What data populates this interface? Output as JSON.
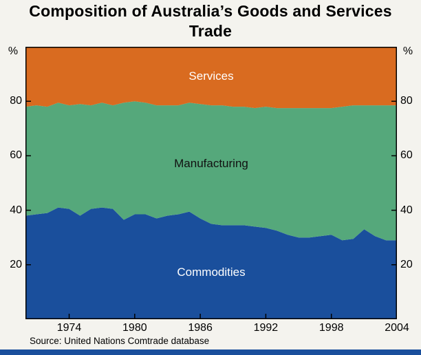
{
  "title": "Composition of Australia’s Goods and Services Trade",
  "source": "Source: United Nations Comtrade database",
  "labels": {
    "services": "Services",
    "manufacturing": "Manufacturing",
    "commodities": "Commodities"
  },
  "axes": {
    "y_unit_left": "%",
    "y_unit_right": "%",
    "y_ticks": [
      20,
      40,
      60,
      80
    ],
    "x_ticks": [
      1974,
      1980,
      1986,
      1992,
      1998,
      2004
    ]
  },
  "colors": {
    "commodities": "#1a4f9c",
    "manufacturing": "#55a87b",
    "services": "#d96b20",
    "background": "#f4f3ee",
    "frame": "#000000",
    "tick": "#000000",
    "bottom_bar": "#1a4f9c"
  },
  "chart_data": {
    "type": "area",
    "stacked": true,
    "title": "Composition of Australia’s Goods and Services Trade",
    "ylabel": "%",
    "ylim": [
      0,
      100
    ],
    "x_range": [
      1970,
      2004
    ],
    "grid": false,
    "legend_position": "labels-inside-areas",
    "years": [
      1970,
      1971,
      1972,
      1973,
      1974,
      1975,
      1976,
      1977,
      1978,
      1979,
      1980,
      1981,
      1982,
      1983,
      1984,
      1985,
      1986,
      1987,
      1988,
      1989,
      1990,
      1991,
      1992,
      1993,
      1994,
      1995,
      1996,
      1997,
      1998,
      1999,
      2000,
      2001,
      2002,
      2003,
      2004
    ],
    "series": [
      {
        "name": "Commodities",
        "values": [
          38,
          38.5,
          39,
          41,
          40.5,
          38,
          40.5,
          41,
          40.5,
          36.5,
          38.5,
          38.5,
          37,
          38,
          38.5,
          39.5,
          37,
          35,
          34.5,
          34.5,
          34.5,
          34,
          33.5,
          32.5,
          31,
          30,
          30,
          30.5,
          31,
          29,
          29.5,
          33,
          30.5,
          29,
          29
        ]
      },
      {
        "name": "Manufacturing",
        "values": [
          40,
          40,
          39,
          38.5,
          38,
          41,
          38,
          38.5,
          38,
          43,
          41.5,
          41,
          41.5,
          40.5,
          40,
          40,
          42,
          43.5,
          44,
          43.5,
          43.5,
          43.5,
          44.5,
          45,
          46.5,
          47.5,
          47.5,
          47,
          46.5,
          49,
          49,
          45.5,
          48,
          49.5,
          49.5
        ]
      },
      {
        "name": "Services",
        "values": [
          22,
          21.5,
          22,
          20.5,
          21.5,
          21,
          21.5,
          20.5,
          21.5,
          20.5,
          20,
          20.5,
          21.5,
          21.5,
          21.5,
          20.5,
          21,
          21.5,
          21.5,
          22,
          22,
          22.5,
          22,
          22.5,
          22.5,
          22.5,
          22.5,
          22.5,
          22.5,
          22,
          21.5,
          21.5,
          21.5,
          21.5,
          21.5
        ]
      }
    ],
    "source": "Source: United Nations Comtrade database"
  }
}
